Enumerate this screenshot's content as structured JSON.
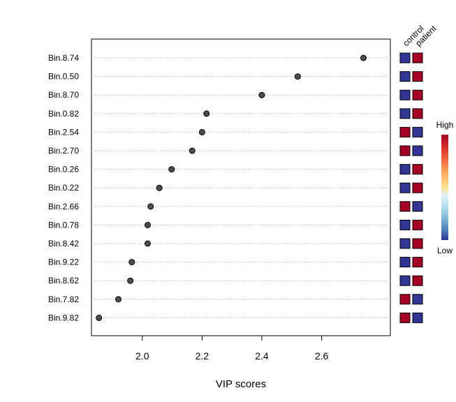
{
  "chart_data": {
    "type": "scatter",
    "xlabel": "VIP scores",
    "xlim": [
      1.83,
      2.83
    ],
    "xticks": [
      2.0,
      2.2,
      2.4,
      2.6
    ],
    "xtick_labels": [
      "2.0",
      "2.2",
      "2.4",
      "2.6"
    ],
    "grid": "horizontal dotted",
    "heatmap_columns": [
      "control",
      "patient"
    ],
    "color_scale": {
      "high_label": "High",
      "low_label": "Low",
      "high_color": "#a50026",
      "low_color": "#313695"
    },
    "features": [
      {
        "label": "Bin.8.74",
        "vip": 2.74,
        "control": "low",
        "patient": "high"
      },
      {
        "label": "Bin.0.50",
        "vip": 2.52,
        "control": "low",
        "patient": "high"
      },
      {
        "label": "Bin.8.70",
        "vip": 2.4,
        "control": "low",
        "patient": "high"
      },
      {
        "label": "Bin.0.82",
        "vip": 2.215,
        "control": "low",
        "patient": "high"
      },
      {
        "label": "Bin.2.54",
        "vip": 2.2,
        "control": "high",
        "patient": "low"
      },
      {
        "label": "Bin.2.70",
        "vip": 2.167,
        "control": "high",
        "patient": "low"
      },
      {
        "label": "Bin.0.26",
        "vip": 2.098,
        "control": "low",
        "patient": "high"
      },
      {
        "label": "Bin.0.22",
        "vip": 2.057,
        "control": "low",
        "patient": "high"
      },
      {
        "label": "Bin.2.66",
        "vip": 2.028,
        "control": "high",
        "patient": "low"
      },
      {
        "label": "Bin.0.78",
        "vip": 2.018,
        "control": "low",
        "patient": "high"
      },
      {
        "label": "Bin.8.42",
        "vip": 2.018,
        "control": "low",
        "patient": "high"
      },
      {
        "label": "Bin.9.22",
        "vip": 1.965,
        "control": "low",
        "patient": "high"
      },
      {
        "label": "Bin.8.62",
        "vip": 1.96,
        "control": "low",
        "patient": "high"
      },
      {
        "label": "Bin.7.82",
        "vip": 1.92,
        "control": "high",
        "patient": "low"
      },
      {
        "label": "Bin.9.82",
        "vip": 1.855,
        "control": "high",
        "patient": "low"
      }
    ]
  }
}
